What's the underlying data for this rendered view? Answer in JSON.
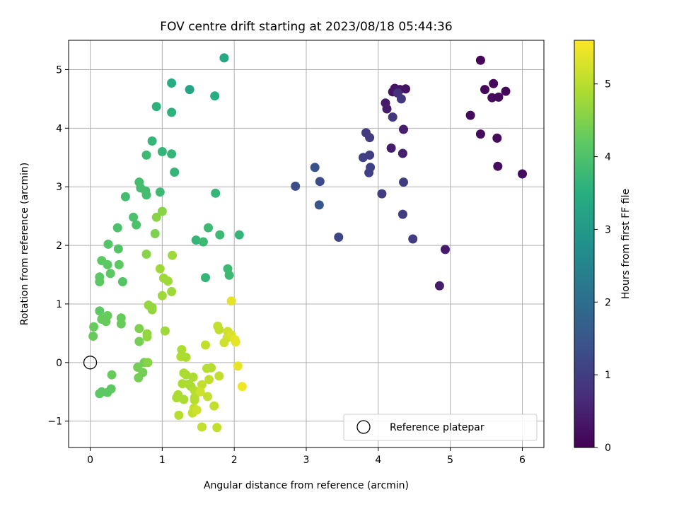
{
  "chart_data": {
    "type": "scatter",
    "title": "FOV centre drift starting at 2023/08/18 05:44:36",
    "xlabel": "Angular distance from reference (arcmin)",
    "ylabel": "Rotation from reference (arcmin)",
    "xlim": [
      -0.3,
      6.3
    ],
    "ylim": [
      -1.45,
      5.5
    ],
    "xticks": [
      "0",
      "1",
      "2",
      "3",
      "4",
      "5",
      "6"
    ],
    "yticks": [
      "−1",
      "0",
      "1",
      "2",
      "3",
      "4",
      "5"
    ],
    "grid": true,
    "colormap": "viridis",
    "colorbar": {
      "label": "Hours from first FF file",
      "range": [
        0,
        5.6
      ],
      "ticks": [
        "0",
        "1",
        "2",
        "3",
        "4",
        "5"
      ]
    },
    "legend": {
      "placement": "lower-right",
      "entries": [
        "Reference platepar"
      ]
    },
    "reference_point": {
      "x": 0,
      "y": 0,
      "name": "Reference platepar"
    },
    "series": [
      {
        "points": [
          [
            5.42,
            5.16,
            0.05
          ],
          [
            5.48,
            4.66,
            0.1
          ],
          [
            5.6,
            4.76,
            0.1
          ],
          [
            5.58,
            4.52,
            0.12
          ],
          [
            5.67,
            4.53,
            0.12
          ],
          [
            5.77,
            4.63,
            0.13
          ],
          [
            5.28,
            4.22,
            0.15
          ],
          [
            5.42,
            3.9,
            0.18
          ],
          [
            5.65,
            3.83,
            0.18
          ],
          [
            5.66,
            3.35,
            0.2
          ],
          [
            6.0,
            3.22,
            0.2
          ],
          [
            4.93,
            1.93,
            0.4
          ],
          [
            4.85,
            1.31,
            0.45
          ],
          [
            4.2,
            4.62,
            0.3
          ],
          [
            4.23,
            4.68,
            0.3
          ],
          [
            4.3,
            4.66,
            0.32
          ],
          [
            4.38,
            4.67,
            0.3
          ],
          [
            4.1,
            4.43,
            0.4
          ],
          [
            4.12,
            4.33,
            0.45
          ],
          [
            4.35,
            3.98,
            0.5
          ],
          [
            4.18,
            3.66,
            0.45
          ],
          [
            4.34,
            3.57,
            0.5
          ],
          [
            4.27,
            4.6,
            0.8
          ],
          [
            4.32,
            4.5,
            0.9
          ],
          [
            4.2,
            4.19,
            0.9
          ],
          [
            3.83,
            3.92,
            1.0
          ],
          [
            3.88,
            3.84,
            1.0
          ],
          [
            3.79,
            3.5,
            1.1
          ],
          [
            3.88,
            3.54,
            1.05
          ],
          [
            3.89,
            3.33,
            1.1
          ],
          [
            3.87,
            3.24,
            1.1
          ],
          [
            4.35,
            3.08,
            1.0
          ],
          [
            4.05,
            2.88,
            1.0
          ],
          [
            4.34,
            2.53,
            1.0
          ],
          [
            4.48,
            2.11,
            1.0
          ],
          [
            3.45,
            2.14,
            1.2
          ],
          [
            3.12,
            3.33,
            1.4
          ],
          [
            3.19,
            3.09,
            1.3
          ],
          [
            2.85,
            3.01,
            1.35
          ],
          [
            3.18,
            2.69,
            1.5
          ],
          [
            1.86,
            5.2,
            3.4
          ],
          [
            1.13,
            4.77,
            3.5
          ],
          [
            1.38,
            4.66,
            3.3
          ],
          [
            1.73,
            4.55,
            3.5
          ],
          [
            0.92,
            4.37,
            3.6
          ],
          [
            1.13,
            4.27,
            3.6
          ],
          [
            0.86,
            3.78,
            3.7
          ],
          [
            1.0,
            3.6,
            3.7
          ],
          [
            1.13,
            3.56,
            3.7
          ],
          [
            0.78,
            3.54,
            3.8
          ],
          [
            1.17,
            3.25,
            3.7
          ],
          [
            1.74,
            2.89,
            3.7
          ],
          [
            0.68,
            3.08,
            3.9
          ],
          [
            0.7,
            2.98,
            3.9
          ],
          [
            0.77,
            2.93,
            3.9
          ],
          [
            0.78,
            2.86,
            3.9
          ],
          [
            0.97,
            2.91,
            3.8
          ],
          [
            0.49,
            2.83,
            3.9
          ],
          [
            0.6,
            2.48,
            4.0
          ],
          [
            0.64,
            2.35,
            4.0
          ],
          [
            0.38,
            2.3,
            4.0
          ],
          [
            1.64,
            2.3,
            3.8
          ],
          [
            1.8,
            2.18,
            3.8
          ],
          [
            2.07,
            2.18,
            3.7
          ],
          [
            1.47,
            2.09,
            3.7
          ],
          [
            1.57,
            2.06,
            3.8
          ],
          [
            1.91,
            1.6,
            3.8
          ],
          [
            1.93,
            1.49,
            3.8
          ],
          [
            1.6,
            1.45,
            3.7
          ],
          [
            0.25,
            2.02,
            4.1
          ],
          [
            0.39,
            1.94,
            4.1
          ],
          [
            0.16,
            1.74,
            4.2
          ],
          [
            0.24,
            1.67,
            4.2
          ],
          [
            0.4,
            1.67,
            4.2
          ],
          [
            0.28,
            1.52,
            4.2
          ],
          [
            0.13,
            1.46,
            4.2
          ],
          [
            0.13,
            1.38,
            4.2
          ],
          [
            0.45,
            1.38,
            4.1
          ],
          [
            0.13,
            0.88,
            4.2
          ],
          [
            0.16,
            0.74,
            4.3
          ],
          [
            0.24,
            0.8,
            4.3
          ],
          [
            0.22,
            0.7,
            4.3
          ],
          [
            0.43,
            0.76,
            4.3
          ],
          [
            0.43,
            0.66,
            4.3
          ],
          [
            0.05,
            0.61,
            4.3
          ],
          [
            0.04,
            0.45,
            4.3
          ],
          [
            0.3,
            -0.21,
            4.3
          ],
          [
            0.29,
            -0.45,
            4.2
          ],
          [
            0.24,
            -0.51,
            4.2
          ],
          [
            0.13,
            -0.53,
            4.2
          ],
          [
            0.16,
            -0.5,
            4.2
          ],
          [
            0.66,
            -0.08,
            4.4
          ],
          [
            0.75,
            0.0,
            4.4
          ],
          [
            0.73,
            -0.17,
            4.4
          ],
          [
            0.67,
            -0.26,
            4.4
          ],
          [
            0.68,
            0.36,
            4.4
          ],
          [
            0.68,
            0.58,
            4.5
          ],
          [
            0.8,
            0.0,
            4.6
          ],
          [
            0.79,
            0.44,
            4.7
          ],
          [
            0.79,
            0.49,
            4.7
          ],
          [
            0.81,
            0.98,
            4.7
          ],
          [
            0.86,
            0.94,
            4.7
          ],
          [
            0.86,
            0.9,
            4.7
          ],
          [
            0.9,
            2.2,
            4.5
          ],
          [
            0.92,
            2.48,
            4.6
          ],
          [
            1.0,
            2.58,
            4.6
          ],
          [
            0.78,
            1.85,
            4.6
          ],
          [
            0.97,
            1.6,
            4.8
          ],
          [
            1.02,
            1.44,
            4.8
          ],
          [
            1.08,
            1.39,
            4.8
          ],
          [
            1.13,
            1.21,
            4.8
          ],
          [
            1.0,
            1.14,
            4.8
          ],
          [
            1.14,
            1.83,
            4.8
          ],
          [
            1.04,
            0.54,
            4.8
          ],
          [
            1.27,
            0.22,
            4.9
          ],
          [
            1.26,
            0.1,
            4.9
          ],
          [
            1.33,
            0.09,
            4.9
          ],
          [
            1.3,
            -0.18,
            4.9
          ],
          [
            1.33,
            -0.21,
            4.9
          ],
          [
            1.28,
            -0.36,
            4.9
          ],
          [
            1.37,
            -0.37,
            4.9
          ],
          [
            1.43,
            -0.25,
            4.9
          ],
          [
            1.4,
            -0.41,
            4.9
          ],
          [
            1.45,
            -0.48,
            5.0
          ],
          [
            1.22,
            -0.55,
            4.9
          ],
          [
            1.2,
            -0.6,
            4.9
          ],
          [
            1.3,
            -0.63,
            4.9
          ],
          [
            1.45,
            -0.6,
            5.0
          ],
          [
            1.45,
            -0.64,
            5.0
          ],
          [
            1.42,
            -0.86,
            5.1
          ],
          [
            1.44,
            -0.78,
            5.1
          ],
          [
            1.23,
            -0.9,
            5.0
          ],
          [
            1.55,
            -1.1,
            5.1
          ],
          [
            1.76,
            -1.11,
            5.1
          ],
          [
            1.62,
            -0.1,
            5.0
          ],
          [
            1.68,
            -0.09,
            5.0
          ],
          [
            1.65,
            -0.29,
            5.1
          ],
          [
            1.79,
            -0.23,
            5.1
          ],
          [
            1.72,
            -0.74,
            5.1
          ],
          [
            1.63,
            -0.58,
            5.1
          ],
          [
            1.55,
            -0.38,
            5.1
          ],
          [
            1.53,
            -0.5,
            5.2
          ],
          [
            1.48,
            -0.81,
            5.2
          ],
          [
            1.6,
            0.3,
            5.1
          ],
          [
            1.77,
            0.62,
            5.1
          ],
          [
            1.79,
            0.56,
            5.1
          ],
          [
            1.86,
            0.34,
            5.2
          ],
          [
            1.91,
            0.53,
            5.2
          ],
          [
            1.9,
            0.42,
            5.2
          ],
          [
            1.96,
            0.47,
            5.3
          ],
          [
            2.01,
            0.39,
            5.4
          ],
          [
            2.02,
            0.35,
            5.4
          ],
          [
            1.96,
            1.05,
            5.4
          ],
          [
            2.05,
            -0.06,
            5.4
          ],
          [
            2.11,
            -0.41,
            5.5
          ]
        ]
      }
    ]
  }
}
